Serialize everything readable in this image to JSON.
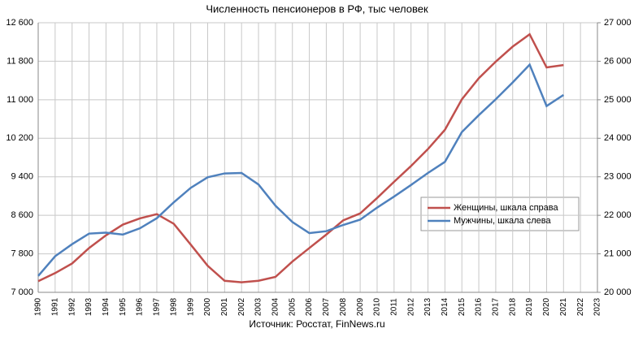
{
  "chart_data": {
    "type": "line",
    "title": "Численность пенсионеров в РФ, тыс человек",
    "source": "Источник: Росстат, FinNews.ru",
    "x": [
      1990,
      1991,
      1992,
      1993,
      1994,
      1995,
      1996,
      1997,
      1998,
      1999,
      2000,
      2001,
      2002,
      2003,
      2004,
      2005,
      2006,
      2007,
      2008,
      2009,
      2010,
      2011,
      2012,
      2013,
      2014,
      2015,
      2016,
      2017,
      2018,
      2019,
      2020,
      2021,
      2022,
      2023
    ],
    "xlim": [
      1990,
      2023
    ],
    "series": [
      {
        "name": "Женщины, шкала справа",
        "color": "#c0504d",
        "axis": "y2",
        "values": [
          20290,
          20500,
          20750,
          21150,
          21480,
          21760,
          21920,
          22030,
          21780,
          21240,
          20690,
          20300,
          20260,
          20300,
          20400,
          20800,
          21150,
          21500,
          21870,
          22050,
          22450,
          22870,
          23280,
          23720,
          24220,
          25010,
          25560,
          25990,
          26380,
          26700,
          25840,
          25900,
          null,
          null
        ]
      },
      {
        "name": "Мужчины, шкала слева",
        "color": "#4f81bd",
        "axis": "y",
        "values": [
          7340,
          7750,
          8000,
          8220,
          8240,
          8200,
          8330,
          8540,
          8870,
          9170,
          9390,
          9470,
          9480,
          9240,
          8800,
          8460,
          8230,
          8270,
          8400,
          8510,
          8760,
          8990,
          9230,
          9480,
          9710,
          10330,
          10680,
          11010,
          11360,
          11730,
          10870,
          11100,
          null,
          null
        ]
      }
    ],
    "ylim": [
      7000,
      12600
    ],
    "yticks": [
      {
        "value": 7000,
        "label": "7 000"
      },
      {
        "value": 7800,
        "label": "7 800"
      },
      {
        "value": 8600,
        "label": "8 600"
      },
      {
        "value": 9400,
        "label": "9 400"
      },
      {
        "value": 10200,
        "label": "10 200"
      },
      {
        "value": 11000,
        "label": "11 000"
      },
      {
        "value": 11800,
        "label": "11 800"
      },
      {
        "value": 12600,
        "label": "12 600"
      }
    ],
    "y2lim": [
      20000,
      27000
    ],
    "y2ticks": [
      {
        "value": 20000,
        "label": "20 000"
      },
      {
        "value": 21000,
        "label": "21 000"
      },
      {
        "value": 22000,
        "label": "22 000"
      },
      {
        "value": 23000,
        "label": "23 000"
      },
      {
        "value": 24000,
        "label": "24 000"
      },
      {
        "value": 25000,
        "label": "25 000"
      },
      {
        "value": 26000,
        "label": "26 000"
      },
      {
        "value": 27000,
        "label": "27 000"
      }
    ],
    "grid": true
  }
}
